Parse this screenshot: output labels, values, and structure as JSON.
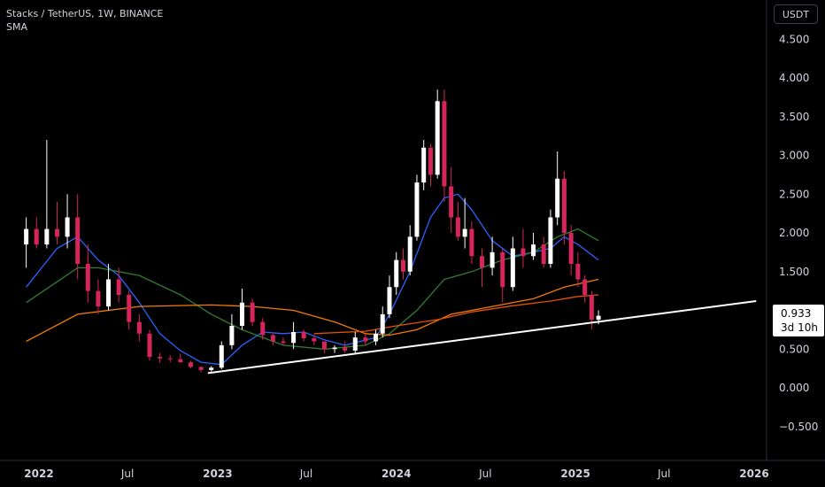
{
  "header": {
    "symbol_line": "Stacks / TetherUS, 1W, BINANCE",
    "indicator": "SMA"
  },
  "currency_button": "USDT",
  "last_price": {
    "value": "0.933",
    "countdown": "3d 10h"
  },
  "colors": {
    "background": "#000000",
    "up_candle": "#ffffff",
    "down_candle": "#d6255a",
    "sma_fast": "#2962ff",
    "sma_mid": "#2e7d32",
    "sma_slow": "#f57c00",
    "sma_long": "#e65100",
    "trendline": "#ffffff"
  },
  "chart_data": {
    "type": "candlestick",
    "y_axis": {
      "ticks": [
        "4.500",
        "4.000",
        "3.500",
        "3.000",
        "2.500",
        "2.000",
        "1.500",
        "1.000",
        "0.500",
        "0.000",
        "−0.500"
      ],
      "ylim": [
        -0.7,
        4.7
      ]
    },
    "x_axis": {
      "ticks": [
        "2022",
        "Jul",
        "2023",
        "Jul",
        "2024",
        "Jul",
        "2025",
        "Jul",
        "2026"
      ]
    },
    "trendline": {
      "from": [
        "2022-12-12",
        0.19
      ],
      "to": [
        "2026-01-05",
        1.12
      ]
    },
    "series": [
      {
        "kind": "candles",
        "points": [
          [
            "2021-12-06",
            1.85,
            2.2,
            1.55,
            2.05
          ],
          [
            "2021-12-27",
            2.05,
            2.2,
            1.8,
            1.85
          ],
          [
            "2022-01-17",
            1.85,
            3.2,
            1.8,
            2.05
          ],
          [
            "2022-02-07",
            2.05,
            2.4,
            1.85,
            1.95
          ],
          [
            "2022-02-28",
            1.95,
            2.5,
            1.8,
            2.2
          ],
          [
            "2022-03-21",
            2.2,
            2.5,
            1.4,
            1.6
          ],
          [
            "2022-04-11",
            1.6,
            1.85,
            1.1,
            1.25
          ],
          [
            "2022-05-02",
            1.25,
            1.4,
            0.95,
            1.05
          ],
          [
            "2022-05-23",
            1.05,
            1.6,
            1.0,
            1.4
          ],
          [
            "2022-06-13",
            1.4,
            1.55,
            1.1,
            1.2
          ],
          [
            "2022-07-04",
            1.2,
            1.25,
            0.75,
            0.85
          ],
          [
            "2022-07-25",
            0.85,
            0.95,
            0.6,
            0.7
          ],
          [
            "2022-08-15",
            0.7,
            0.75,
            0.35,
            0.4
          ],
          [
            "2022-09-05",
            0.4,
            0.45,
            0.32,
            0.38
          ],
          [
            "2022-09-26",
            0.38,
            0.42,
            0.33,
            0.37
          ],
          [
            "2022-10-17",
            0.37,
            0.44,
            0.33,
            0.33
          ],
          [
            "2022-11-07",
            0.33,
            0.35,
            0.25,
            0.27
          ],
          [
            "2022-11-28",
            0.27,
            0.28,
            0.2,
            0.23
          ],
          [
            "2022-12-19",
            0.23,
            0.28,
            0.21,
            0.26
          ],
          [
            "2023-01-09",
            0.26,
            0.6,
            0.24,
            0.55
          ],
          [
            "2023-01-30",
            0.55,
            0.95,
            0.5,
            0.8
          ],
          [
            "2023-02-20",
            0.8,
            1.28,
            0.75,
            1.1
          ],
          [
            "2023-03-13",
            1.1,
            1.15,
            0.8,
            0.85
          ],
          [
            "2023-04-03",
            0.85,
            0.9,
            0.62,
            0.68
          ],
          [
            "2023-04-24",
            0.68,
            0.7,
            0.55,
            0.6
          ],
          [
            "2023-05-15",
            0.6,
            0.65,
            0.55,
            0.58
          ],
          [
            "2023-06-05",
            0.58,
            0.85,
            0.5,
            0.72
          ],
          [
            "2023-06-26",
            0.72,
            0.75,
            0.6,
            0.64
          ],
          [
            "2023-07-17",
            0.64,
            0.68,
            0.55,
            0.6
          ],
          [
            "2023-08-07",
            0.6,
            0.6,
            0.45,
            0.5
          ],
          [
            "2023-08-28",
            0.5,
            0.55,
            0.45,
            0.52
          ],
          [
            "2023-09-18",
            0.52,
            0.6,
            0.45,
            0.48
          ],
          [
            "2023-10-09",
            0.48,
            0.72,
            0.45,
            0.65
          ],
          [
            "2023-10-30",
            0.65,
            0.7,
            0.55,
            0.6
          ],
          [
            "2023-11-20",
            0.6,
            0.75,
            0.55,
            0.7
          ],
          [
            "2023-12-04",
            0.7,
            1.05,
            0.65,
            0.95
          ],
          [
            "2023-12-18",
            0.95,
            1.45,
            0.9,
            1.3
          ],
          [
            "2024-01-01",
            1.3,
            1.75,
            1.2,
            1.65
          ],
          [
            "2024-01-15",
            1.65,
            1.8,
            1.4,
            1.5
          ],
          [
            "2024-01-29",
            1.5,
            2.1,
            1.45,
            1.95
          ],
          [
            "2024-02-12",
            1.95,
            2.75,
            1.9,
            2.65
          ],
          [
            "2024-02-26",
            2.65,
            3.2,
            2.55,
            3.1
          ],
          [
            "2024-03-11",
            3.1,
            3.15,
            2.6,
            2.75
          ],
          [
            "2024-03-25",
            2.75,
            3.85,
            2.7,
            3.7
          ],
          [
            "2024-04-08",
            3.7,
            3.85,
            2.4,
            2.6
          ],
          [
            "2024-04-22",
            2.6,
            2.85,
            2.0,
            2.2
          ],
          [
            "2024-05-06",
            2.2,
            2.4,
            1.9,
            1.95
          ],
          [
            "2024-05-20",
            1.95,
            2.45,
            1.8,
            2.05
          ],
          [
            "2024-06-03",
            2.05,
            2.15,
            1.6,
            1.7
          ],
          [
            "2024-06-24",
            1.7,
            1.8,
            1.3,
            1.55
          ],
          [
            "2024-07-15",
            1.55,
            1.95,
            1.45,
            1.75
          ],
          [
            "2024-08-05",
            1.75,
            1.8,
            1.1,
            1.3
          ],
          [
            "2024-08-26",
            1.3,
            1.95,
            1.25,
            1.8
          ],
          [
            "2024-09-16",
            1.8,
            2.05,
            1.55,
            1.7
          ],
          [
            "2024-10-07",
            1.7,
            2.0,
            1.65,
            1.85
          ],
          [
            "2024-10-28",
            1.85,
            1.95,
            1.55,
            1.6
          ],
          [
            "2024-11-11",
            1.6,
            2.3,
            1.55,
            2.2
          ],
          [
            "2024-11-25",
            2.2,
            3.05,
            2.1,
            2.7
          ],
          [
            "2024-12-09",
            2.7,
            2.8,
            1.85,
            2.0
          ],
          [
            "2024-12-23",
            2.0,
            2.1,
            1.45,
            1.6
          ],
          [
            "2025-01-06",
            1.6,
            1.75,
            1.3,
            1.4
          ],
          [
            "2025-01-20",
            1.4,
            1.45,
            1.1,
            1.2
          ],
          [
            "2025-02-03",
            1.2,
            1.25,
            0.75,
            0.88
          ],
          [
            "2025-02-17",
            0.88,
            1.0,
            0.82,
            0.93
          ]
        ]
      },
      {
        "kind": "line",
        "role": "sma_fast",
        "points": [
          [
            "2021-12-06",
            1.3
          ],
          [
            "2022-02-07",
            1.8
          ],
          [
            "2022-03-21",
            1.95
          ],
          [
            "2022-05-02",
            1.65
          ],
          [
            "2022-06-13",
            1.45
          ],
          [
            "2022-07-25",
            1.1
          ],
          [
            "2022-09-05",
            0.7
          ],
          [
            "2022-10-17",
            0.48
          ],
          [
            "2022-11-28",
            0.33
          ],
          [
            "2023-01-09",
            0.3
          ],
          [
            "2023-02-20",
            0.55
          ],
          [
            "2023-04-03",
            0.72
          ],
          [
            "2023-05-15",
            0.7
          ],
          [
            "2023-06-26",
            0.72
          ],
          [
            "2023-08-07",
            0.62
          ],
          [
            "2023-09-18",
            0.55
          ],
          [
            "2023-11-20",
            0.65
          ],
          [
            "2023-12-18",
            0.95
          ],
          [
            "2024-01-29",
            1.5
          ],
          [
            "2024-03-11",
            2.2
          ],
          [
            "2024-04-08",
            2.45
          ],
          [
            "2024-05-06",
            2.5
          ],
          [
            "2024-06-03",
            2.3
          ],
          [
            "2024-07-15",
            1.9
          ],
          [
            "2024-08-26",
            1.7
          ],
          [
            "2024-10-07",
            1.75
          ],
          [
            "2024-11-11",
            1.8
          ],
          [
            "2024-12-09",
            1.95
          ],
          [
            "2025-01-06",
            1.85
          ],
          [
            "2025-02-17",
            1.65
          ]
        ]
      },
      {
        "kind": "line",
        "role": "sma_mid",
        "points": [
          [
            "2021-12-06",
            1.1
          ],
          [
            "2022-03-21",
            1.55
          ],
          [
            "2022-05-02",
            1.55
          ],
          [
            "2022-07-25",
            1.45
          ],
          [
            "2022-10-17",
            1.2
          ],
          [
            "2022-12-19",
            0.95
          ],
          [
            "2023-02-20",
            0.75
          ],
          [
            "2023-05-15",
            0.55
          ],
          [
            "2023-08-07",
            0.5
          ],
          [
            "2023-10-30",
            0.55
          ],
          [
            "2023-12-18",
            0.7
          ],
          [
            "2024-02-12",
            1.0
          ],
          [
            "2024-04-08",
            1.4
          ],
          [
            "2024-06-03",
            1.5
          ],
          [
            "2024-08-05",
            1.65
          ],
          [
            "2024-10-07",
            1.75
          ],
          [
            "2024-11-25",
            1.95
          ],
          [
            "2025-01-06",
            2.05
          ],
          [
            "2025-02-17",
            1.9
          ]
        ]
      },
      {
        "kind": "line",
        "role": "sma_slow",
        "points": [
          [
            "2021-12-06",
            0.6
          ],
          [
            "2022-03-21",
            0.95
          ],
          [
            "2022-07-25",
            1.05
          ],
          [
            "2022-12-19",
            1.07
          ],
          [
            "2023-03-13",
            1.05
          ],
          [
            "2023-06-05",
            1.0
          ],
          [
            "2023-08-28",
            0.85
          ],
          [
            "2023-10-30",
            0.7
          ],
          [
            "2023-12-18",
            0.68
          ],
          [
            "2024-02-12",
            0.75
          ],
          [
            "2024-04-22",
            0.95
          ],
          [
            "2024-07-15",
            1.05
          ],
          [
            "2024-10-07",
            1.15
          ],
          [
            "2024-12-09",
            1.3
          ],
          [
            "2025-02-17",
            1.4
          ]
        ]
      },
      {
        "kind": "line",
        "role": "sma_long",
        "points": [
          [
            "2023-07-17",
            0.7
          ],
          [
            "2023-10-30",
            0.73
          ],
          [
            "2024-01-01",
            0.8
          ],
          [
            "2024-03-25",
            0.88
          ],
          [
            "2024-06-03",
            0.98
          ],
          [
            "2024-08-26",
            1.06
          ],
          [
            "2024-11-11",
            1.12
          ],
          [
            "2025-01-06",
            1.18
          ],
          [
            "2025-02-17",
            1.2
          ]
        ]
      }
    ]
  }
}
